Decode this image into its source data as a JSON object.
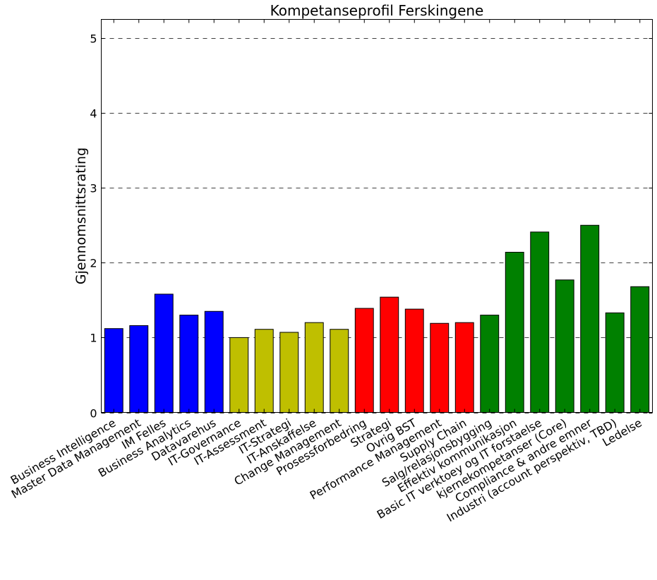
{
  "chart_data": {
    "type": "bar",
    "title": "Kompetanseprofil Ferskingene",
    "xlabel": "",
    "ylabel": "Gjennomsnittsrating",
    "ylim": [
      0,
      5.25
    ],
    "yticks": [
      0,
      1,
      2,
      3,
      4,
      5
    ],
    "grid": "y dashed",
    "categories": [
      "Business Intelligence",
      "Master Data Management",
      "IM Felles",
      "Business Analytics",
      "Datavarehus",
      "IT-Governance",
      "IT-Assessment",
      "IT-Strategi",
      "IT-Anskaffelse",
      "Change Management",
      "Prosessforbedring",
      "Strategi",
      "Ovrig BST",
      "Performance Management",
      "Supply Chain",
      "Salg/relasjonsbygging",
      "Effektiv kommunikasjon",
      "Basic IT verktoey og IT forstaelse",
      "kjernekompetanser (Core)",
      "Compliance & andre emner",
      "Industri (account perspektiv, TBD)",
      "Ledelse"
    ],
    "values": [
      1.12,
      1.16,
      1.58,
      1.3,
      1.35,
      1.0,
      1.11,
      1.07,
      1.2,
      1.11,
      1.39,
      1.54,
      1.38,
      1.19,
      1.2,
      1.3,
      2.14,
      2.41,
      1.77,
      2.5,
      1.33,
      1.68
    ],
    "colors": [
      "#0000ff",
      "#0000ff",
      "#0000ff",
      "#0000ff",
      "#0000ff",
      "#bfbf00",
      "#bfbf00",
      "#bfbf00",
      "#bfbf00",
      "#bfbf00",
      "#ff0000",
      "#ff0000",
      "#ff0000",
      "#ff0000",
      "#ff0000",
      "#008000",
      "#008000",
      "#008000",
      "#008000",
      "#008000",
      "#008000",
      "#008000"
    ]
  }
}
